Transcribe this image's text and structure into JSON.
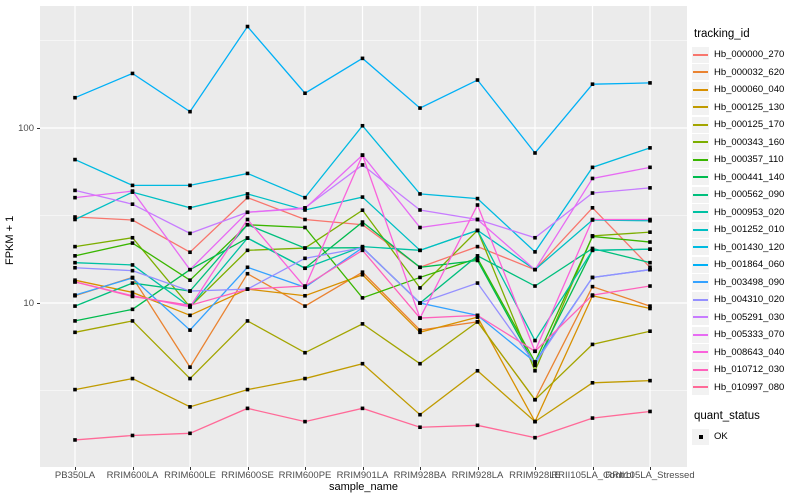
{
  "figure": {
    "y_axis_title": "FPKM + 1",
    "x_axis_title": "sample_name",
    "panel_bg": "#EBEBEB",
    "grid_color": "#FFFFFF",
    "tick_label_color": "#4D4D4D",
    "point_color": "#000000",
    "y_ticks": [
      {
        "label": "100",
        "value": 100
      },
      {
        "label": "10",
        "value": 10
      }
    ]
  },
  "legend": {
    "tracking_title": "tracking_id",
    "quant_title": "quant_status",
    "quant_items": [
      {
        "label": "OK"
      }
    ],
    "key_bg": "#F2F2F2"
  },
  "chart_data": {
    "type": "line",
    "title": "",
    "xlabel": "sample_name",
    "ylabel": "FPKM + 1",
    "y_scale": "log10",
    "ylim": [
      1.3,
      470
    ],
    "grid": "on",
    "legend_position": "right",
    "point_shape": "filled-square",
    "major_gridlines": [
      10,
      100
    ],
    "minor_gridlines": [
      3.162,
      31.62,
      316.2
    ],
    "categories": [
      "PB350LA",
      "RRIM600LA",
      "RRIM600LE",
      "RRIM600SE",
      "RRIM600PE",
      "RRIM901LA",
      "RRIM928BA",
      "RRIM928LA",
      "RRIM928LE",
      "RRII105LA_Control",
      "RRII105LA_Stressed"
    ],
    "series": [
      {
        "name": "Hb_000000_270",
        "color": "#F8766D",
        "values": [
          31,
          29.8,
          19.5,
          40,
          30,
          28,
          16,
          21,
          15.5,
          35,
          16
        ]
      },
      {
        "name": "Hb_000032_620",
        "color": "#EA8331",
        "values": [
          11,
          14,
          4.3,
          14.7,
          9.6,
          15,
          7,
          7.8,
          2.8,
          12.4,
          9.6
        ]
      },
      {
        "name": "Hb_000060_040",
        "color": "#D89000",
        "values": [
          13.5,
          11.5,
          8.5,
          12,
          11,
          14.5,
          6.8,
          8.3,
          2.1,
          11,
          9.3
        ]
      },
      {
        "name": "Hb_000125_130",
        "color": "#C09B00",
        "values": [
          3.2,
          3.7,
          2.55,
          3.2,
          3.7,
          4.5,
          2.3,
          4.1,
          2.1,
          3.5,
          3.6
        ]
      },
      {
        "name": "Hb_000125_170",
        "color": "#A3A500",
        "values": [
          6.8,
          7.9,
          3.7,
          7.9,
          5.2,
          7.6,
          4.5,
          7.8,
          2.8,
          5.8,
          6.9
        ]
      },
      {
        "name": "Hb_000343_160",
        "color": "#7CAE00",
        "values": [
          21,
          23.6,
          9.5,
          20,
          20.6,
          33.9,
          12.2,
          26,
          4.1,
          24.2,
          25.4
        ]
      },
      {
        "name": "Hb_000357_110",
        "color": "#39B600",
        "values": [
          18.6,
          22,
          13.5,
          28,
          27,
          10.7,
          14,
          18,
          4.6,
          24,
          22.3
        ]
      },
      {
        "name": "Hb_000441_140",
        "color": "#00BB4E",
        "values": [
          7.9,
          9.2,
          15.5,
          23.5,
          15.8,
          29,
          16,
          17.5,
          4.4,
          20,
          20.3
        ]
      },
      {
        "name": "Hb_000562_090",
        "color": "#00BF7D",
        "values": [
          9.6,
          13,
          11.7,
          28,
          20.6,
          20.7,
          10,
          18.6,
          12.5,
          20.5,
          17
        ]
      },
      {
        "name": "Hb_000953_020",
        "color": "#00C1A3",
        "values": [
          17,
          16.5,
          9.5,
          23.5,
          15.8,
          21,
          20,
          26,
          6.1,
          20,
          20.3
        ]
      },
      {
        "name": "Hb_001252_010",
        "color": "#00BFC4",
        "values": [
          30,
          43,
          35,
          42,
          34,
          40.3,
          20,
          26,
          15.5,
          29.8,
          29.5
        ]
      },
      {
        "name": "Hb_001430_120",
        "color": "#00BAE0",
        "values": [
          66,
          47,
          47,
          55,
          40,
          103,
          42,
          39.5,
          19.6,
          59.6,
          77
        ]
      },
      {
        "name": "Hb_001864_060",
        "color": "#00B0F6",
        "values": [
          149,
          205,
          124,
          380,
          158,
          250,
          130,
          188,
          72,
          178,
          181
        ]
      },
      {
        "name": "Hb_003498_090",
        "color": "#35A2FF",
        "values": [
          11.1,
          13.9,
          7,
          16,
          12.3,
          20.7,
          10,
          8.5,
          4.6,
          14,
          15.5
        ]
      },
      {
        "name": "Hb_004310_020",
        "color": "#9590FF",
        "values": [
          15.9,
          15.3,
          11.7,
          12,
          18,
          20.7,
          10,
          13,
          4.5,
          14,
          15.5
        ]
      },
      {
        "name": "Hb_005291_030",
        "color": "#C77CFF",
        "values": [
          44,
          36.7,
          25,
          33,
          35,
          61.5,
          34,
          30,
          23.6,
          42.5,
          45.5
        ]
      },
      {
        "name": "Hb_005333_070",
        "color": "#E76BF3",
        "values": [
          40,
          43.6,
          15.5,
          33,
          34.7,
          70,
          27,
          30,
          15.5,
          51.5,
          59.6
        ]
      },
      {
        "name": "Hb_008643_040",
        "color": "#FA62DB",
        "values": [
          13.2,
          11,
          9.5,
          30,
          12.3,
          70,
          8.2,
          36.3,
          5.3,
          30,
          30
        ]
      },
      {
        "name": "Hb_010712_030",
        "color": "#FF62BC",
        "values": [
          13.2,
          10.9,
          9.7,
          12,
          12.5,
          20,
          8.2,
          8.5,
          5.3,
          11.1,
          12.5
        ]
      },
      {
        "name": "Hb_010997_080",
        "color": "#FF6A98",
        "values": [
          1.65,
          1.75,
          1.8,
          2.5,
          2.1,
          2.5,
          1.95,
          2.0,
          1.7,
          2.2,
          2.4
        ]
      }
    ]
  }
}
